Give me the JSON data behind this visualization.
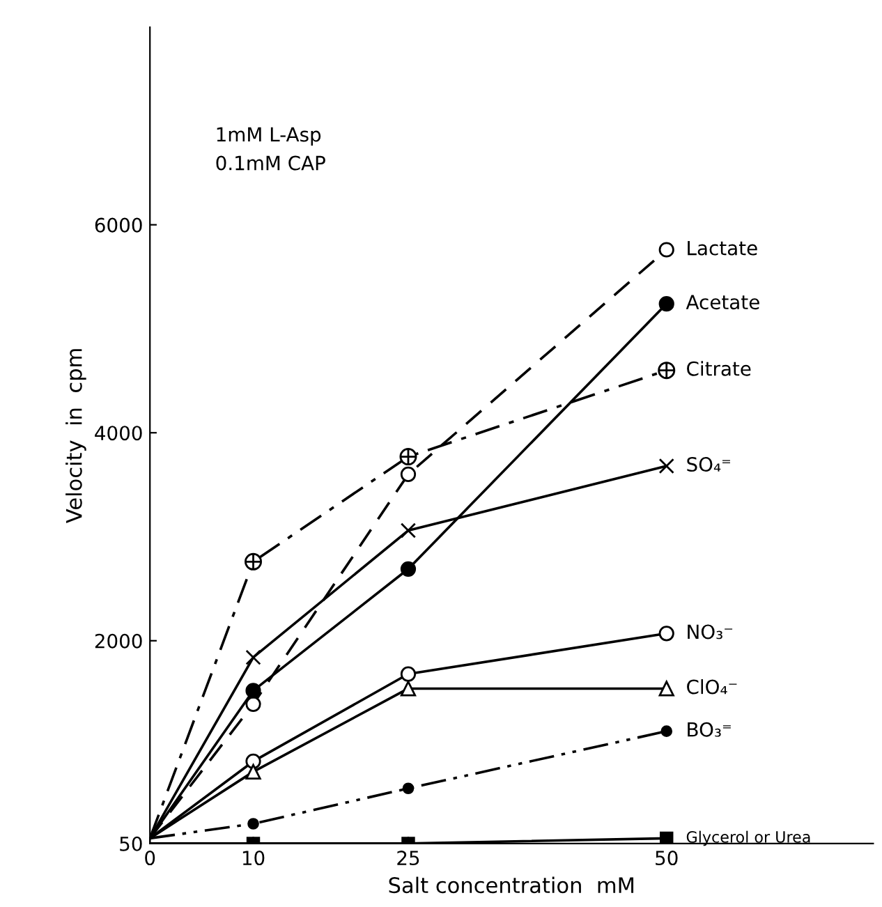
{
  "chart_data": {
    "type": "line",
    "xlabel": "Salt concentration  mM",
    "ylabel": "Velocity  in  cpm",
    "annotations": [
      "1mM L-Asp",
      "0.1mM CAP"
    ],
    "xlim": [
      0,
      70
    ],
    "xticks": [
      0,
      10,
      25,
      50
    ],
    "ylim": [
      50,
      7900
    ],
    "yticks": [
      50,
      2000,
      4000,
      6000
    ],
    "grid": false,
    "legend": false,
    "series": [
      {
        "name": "Lactate",
        "color": "#000000",
        "line_style": "dashed",
        "marker": "circle-open",
        "x": [
          0,
          10,
          25,
          50
        ],
        "values": [
          100,
          1390,
          3600,
          5760
        ]
      },
      {
        "name": "Acetate",
        "color": "#000000",
        "line_style": "solid",
        "marker": "circle",
        "x": [
          0,
          10,
          25,
          50
        ],
        "values": [
          100,
          1520,
          2690,
          5240
        ]
      },
      {
        "name": "Citrate",
        "color": "#000000",
        "line_style": "dashdot",
        "marker": "cross",
        "x": [
          0,
          10,
          25,
          50
        ],
        "values": [
          100,
          2760,
          3770,
          4600
        ]
      },
      {
        "name": "SO₄⁼",
        "color": "#000000",
        "line_style": "solid",
        "marker": "x",
        "x": [
          0,
          10,
          25,
          50
        ],
        "values": [
          100,
          1840,
          3060,
          3680
        ]
      },
      {
        "name": "NO₃⁻",
        "color": "#000000",
        "line_style": "solid",
        "marker": "circle-open",
        "x": [
          0,
          10,
          25,
          50
        ],
        "values": [
          100,
          840,
          1680,
          2070
        ]
      },
      {
        "name": "ClO₄⁻",
        "color": "#000000",
        "line_style": "solid",
        "marker": "triangle-open",
        "x": [
          0,
          10,
          25,
          50
        ],
        "values": [
          100,
          740,
          1540,
          1540
        ]
      },
      {
        "name": "BO₃⁼",
        "color": "#000000",
        "line_style": "dashdotdot",
        "marker": "circle-small",
        "x": [
          0,
          10,
          25,
          50
        ],
        "values": [
          100,
          240,
          580,
          1130
        ]
      },
      {
        "name": "Glycerol or Urea",
        "color": "#000000",
        "line_style": "solid",
        "marker": "square",
        "x": [
          0,
          10,
          25,
          50
        ],
        "values": [
          50,
          50,
          50,
          100
        ]
      }
    ]
  }
}
